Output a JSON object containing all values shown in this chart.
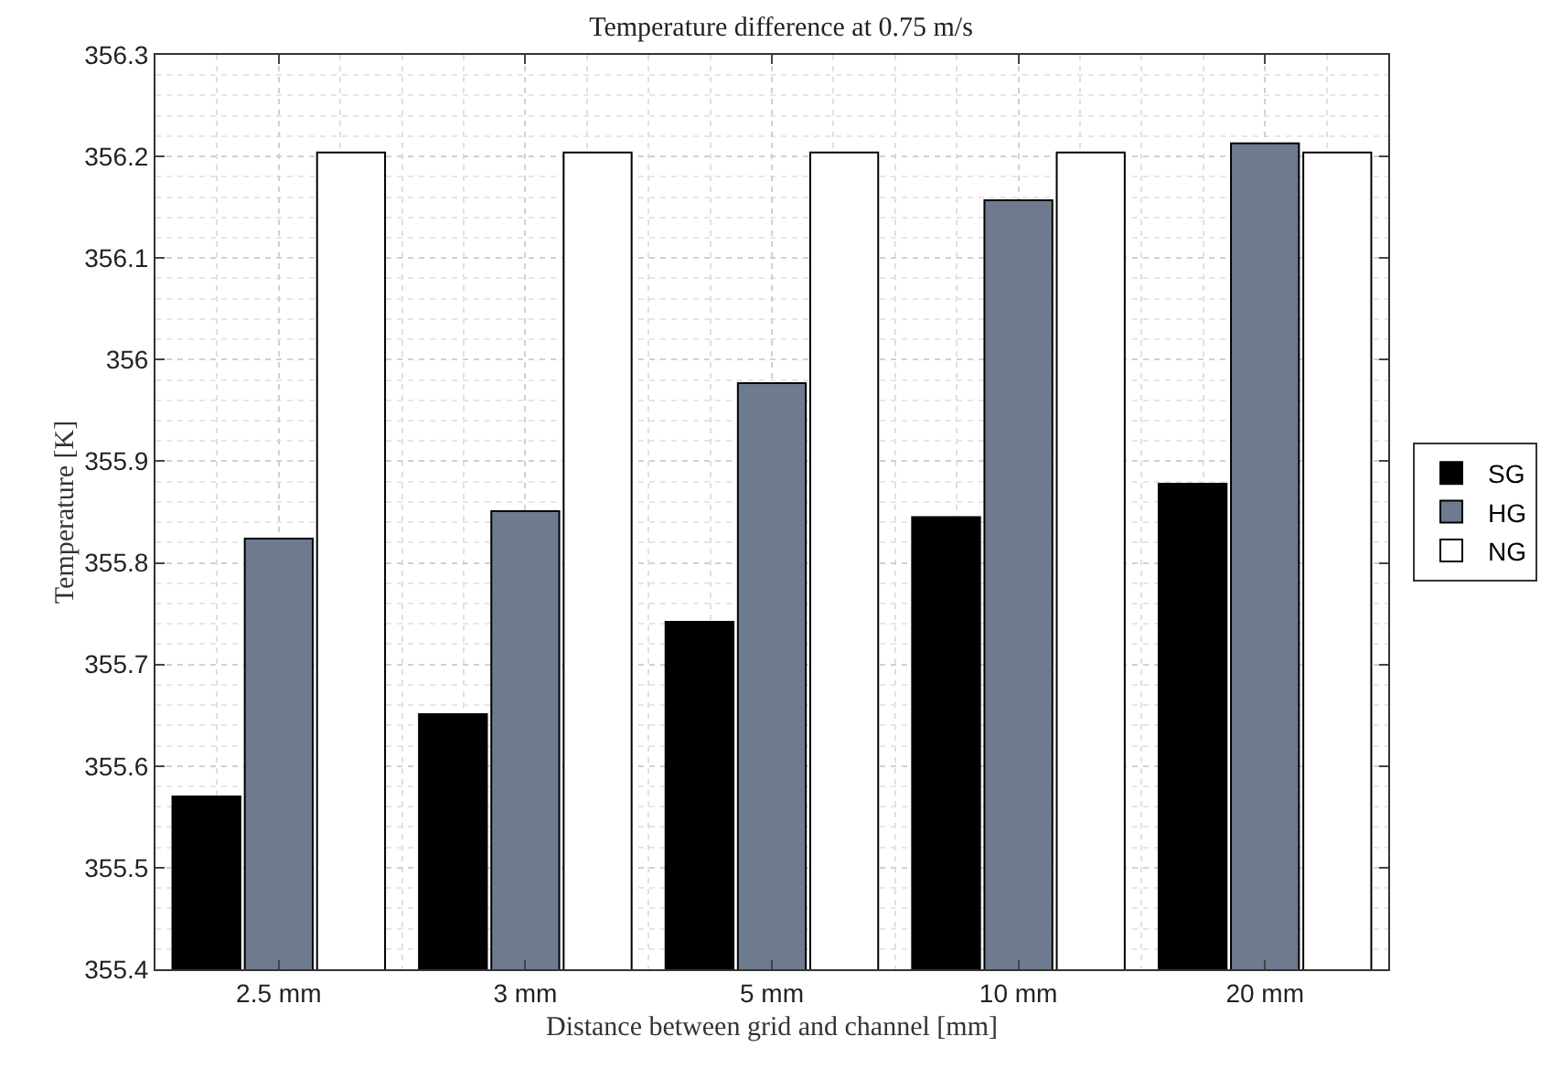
{
  "chart_data": {
    "type": "bar",
    "title": "Temperature difference at 0.75 m/s",
    "xlabel": "Distance between grid and channel [mm]",
    "ylabel": "Temperature [K]",
    "categories": [
      "2.5 mm",
      "3 mm",
      "5 mm",
      "10 mm",
      "20 mm"
    ],
    "series": [
      {
        "name": "SG",
        "color": "#000000",
        "values": [
          355.57,
          355.651,
          355.742,
          355.845,
          355.878
        ]
      },
      {
        "name": "HG",
        "color": "#6e7a8e",
        "values": [
          355.824,
          355.851,
          355.977,
          356.157,
          356.213
        ]
      },
      {
        "name": "NG",
        "color": "#ffffff",
        "values": [
          356.204,
          356.204,
          356.204,
          356.204,
          356.204
        ]
      }
    ],
    "ylim": [
      355.4,
      356.3
    ],
    "yticks": [
      355.4,
      355.5,
      355.6,
      355.7,
      355.8,
      355.9,
      {
        "value": 356,
        "label": "356"
      },
      356.1,
      356.2,
      356.3
    ],
    "grid": true,
    "legend": "right"
  }
}
